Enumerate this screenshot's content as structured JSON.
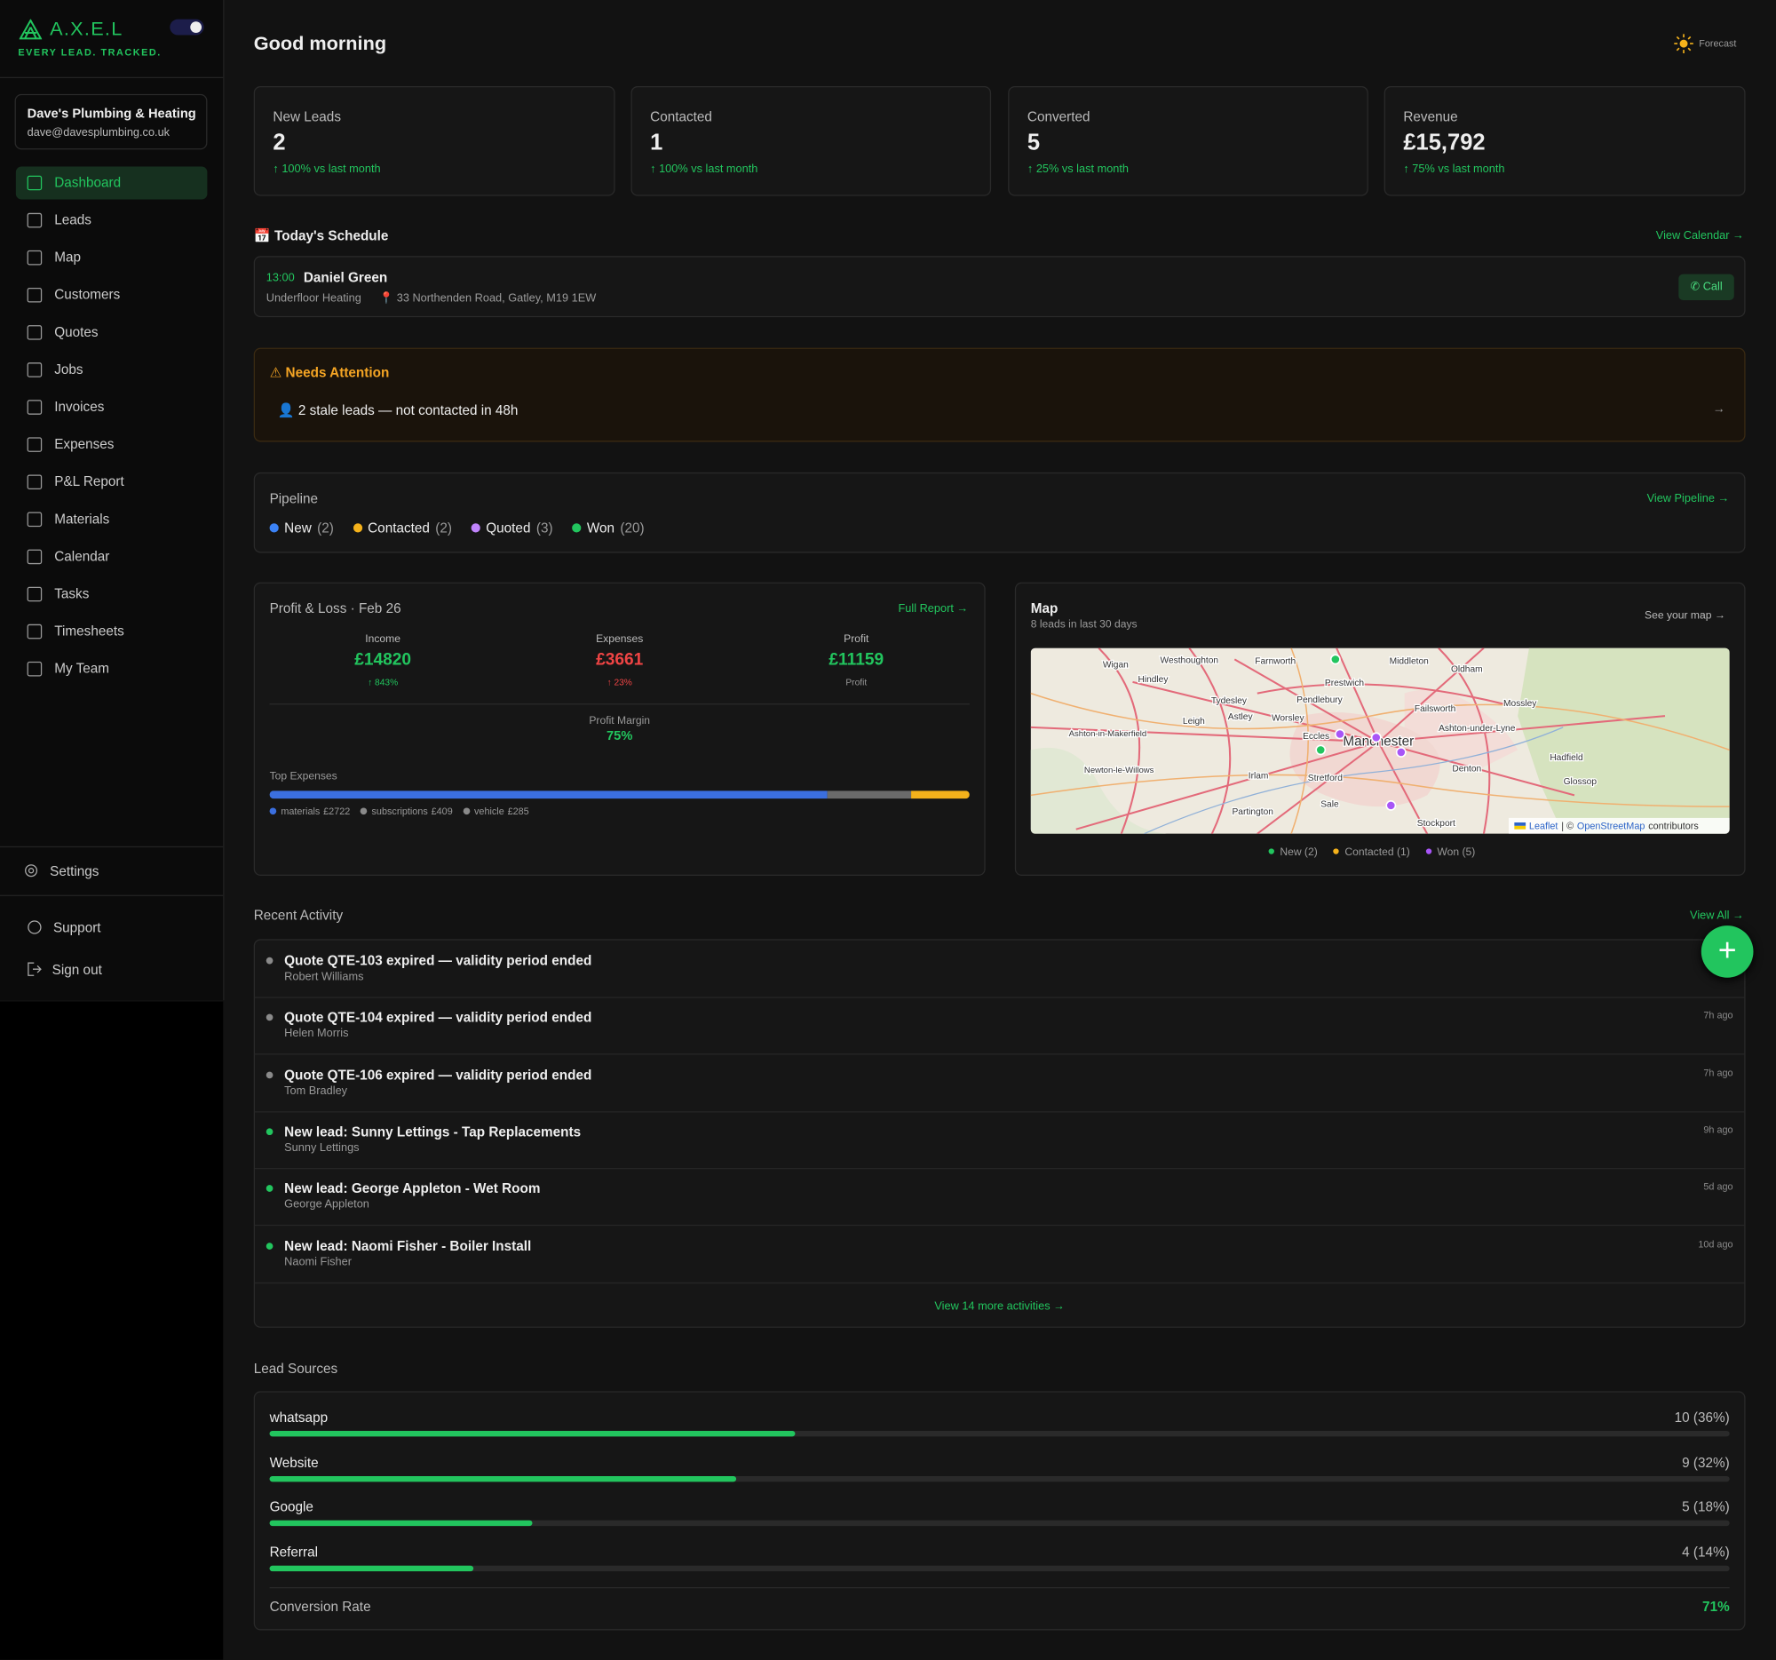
{
  "sidebar": {
    "brand": "A.X.E.L",
    "tagline": "EVERY LEAD. TRACKED.",
    "account": {
      "name": "Dave's Plumbing & Heating",
      "email": "dave@davesplumbing.co.uk"
    },
    "nav": [
      "Dashboard",
      "Leads",
      "Map",
      "Customers",
      "Quotes",
      "Jobs",
      "Invoices",
      "Expenses",
      "P&L Report",
      "Materials",
      "Calendar",
      "Tasks",
      "Timesheets",
      "My Team"
    ],
    "settings": "Settings",
    "support": "Support",
    "sign_out": "Sign out"
  },
  "header": {
    "greeting": "Good morning",
    "forecast": "Forecast"
  },
  "stats": [
    {
      "label": "New Leads",
      "value": 2,
      "change": "100% vs last month"
    },
    {
      "label": "Contacted",
      "value": 1,
      "change": "100% vs last month"
    },
    {
      "label": "Converted",
      "value": 5,
      "change": "25% vs last month"
    },
    {
      "label": "Revenue",
      "value": "£15,792",
      "change": "75% vs last month"
    }
  ],
  "schedule": {
    "title": "Today's Schedule",
    "link": "View Calendar →",
    "items": [
      {
        "time": "13:00",
        "name": "Daniel Green",
        "service": "Underfloor Heating",
        "address": "33 Northenden Road, Gatley, M19 1EW",
        "action": "Call"
      }
    ]
  },
  "attention": {
    "title": "Needs Attention",
    "items": [
      "2 stale leads — not contacted in 48h"
    ]
  },
  "pipeline": {
    "title": "Pipeline",
    "link": "View Pipeline →",
    "stages": [
      {
        "name": "New",
        "count": "(2)",
        "color": "#3b82f6"
      },
      {
        "name": "Contacted",
        "count": "(2)",
        "color": "#f5b21b"
      },
      {
        "name": "Quoted",
        "count": "(3)",
        "color": "#c084fc"
      },
      {
        "name": "Won",
        "count": "(20)",
        "color": "#22c55e"
      }
    ]
  },
  "pnl": {
    "title": "Profit & Loss · Feb 26",
    "link": "Full Report →",
    "columns": [
      {
        "label": "Income",
        "value": "£14820",
        "note": "↑ 843%",
        "color": "#22c55e"
      },
      {
        "label": "Expenses",
        "value": "£3661",
        "note": "↑ 23%",
        "color": "#ef4444"
      },
      {
        "label": "Profit",
        "value": "£11159",
        "note": "Profit",
        "color": "#22c55e"
      }
    ],
    "margin_label": "Profit Margin",
    "margin": "75%",
    "top_expenses_title": "Top Expenses",
    "expenses": [
      {
        "name": "materials",
        "label": "£2722",
        "value": 2722,
        "color": "#3b6fe0"
      },
      {
        "name": "subscriptions",
        "label": "£409",
        "value": 409,
        "color": "#6b6b6b"
      },
      {
        "name": "vehicle",
        "label": "£285",
        "value": 285,
        "color": "#f5b21b"
      }
    ]
  },
  "map": {
    "title": "Map",
    "subtitle": "8 leads in last 30 days",
    "link": "See your map →",
    "places": [
      "Wigan",
      "Westhoughton",
      "Farnworth",
      "Middleton",
      "Oldham",
      "Hindley",
      "Prestwich",
      "Tydesley",
      "Pendlebury",
      "Failsworth",
      "Mossley",
      "Leigh",
      "Astley",
      "Worsley",
      "Ashton-in-Makerfield",
      "Eccles",
      "Manchester",
      "Ashton-under-Lyne",
      "Hadfield",
      "Newton-le-Willows",
      "Irlam",
      "Stretford",
      "Denton",
      "Glossop",
      "Partington",
      "Sale",
      "Stockport"
    ],
    "attribution": [
      "Leaflet",
      "| ©",
      "OpenStreetMap",
      "contributors"
    ],
    "legend": [
      {
        "name": "New (2)",
        "color": "#22c55e"
      },
      {
        "name": "Contacted (1)",
        "color": "#f5b21b"
      },
      {
        "name": "Won (5)",
        "color": "#a855f7"
      }
    ]
  },
  "activity": {
    "title": "Recent Activity",
    "link": "View All →",
    "items": [
      {
        "title": "Quote QTE-103 expired — validity period ended",
        "person": "Robert Williams",
        "color": "#8a8a8a"
      },
      {
        "title": "Quote QTE-104 expired — validity period ended",
        "person": "Helen Morris",
        "time": "7h ago",
        "color": "#8a8a8a"
      },
      {
        "title": "Quote QTE-106 expired — validity period ended",
        "person": "Tom Bradley",
        "time": "7h ago",
        "color": "#8a8a8a"
      },
      {
        "title": "New lead: Sunny Lettings - Tap Replacements",
        "person": "Sunny Lettings",
        "time": "9h ago",
        "color": "#22c55e"
      },
      {
        "title": "New lead: George Appleton - Wet Room",
        "person": "George Appleton",
        "time": "5d ago",
        "color": "#22c55e"
      },
      {
        "title": "New lead: Naomi Fisher - Boiler Install",
        "person": "Naomi Fisher",
        "time": "10d ago",
        "color": "#22c55e"
      }
    ],
    "more": "View 14 more activities →"
  },
  "lead_sources": {
    "title": "Lead Sources",
    "items": [
      {
        "name": "whatsapp",
        "label": "10 (36%)",
        "percent": 36
      },
      {
        "name": "Website",
        "label": "9 (32%)",
        "percent": 32
      },
      {
        "name": "Google",
        "label": "5 (18%)",
        "percent": 18
      },
      {
        "name": "Referral",
        "label": "4 (14%)",
        "percent": 14
      }
    ],
    "conversion_label": "Conversion Rate",
    "conversion": "71%"
  }
}
